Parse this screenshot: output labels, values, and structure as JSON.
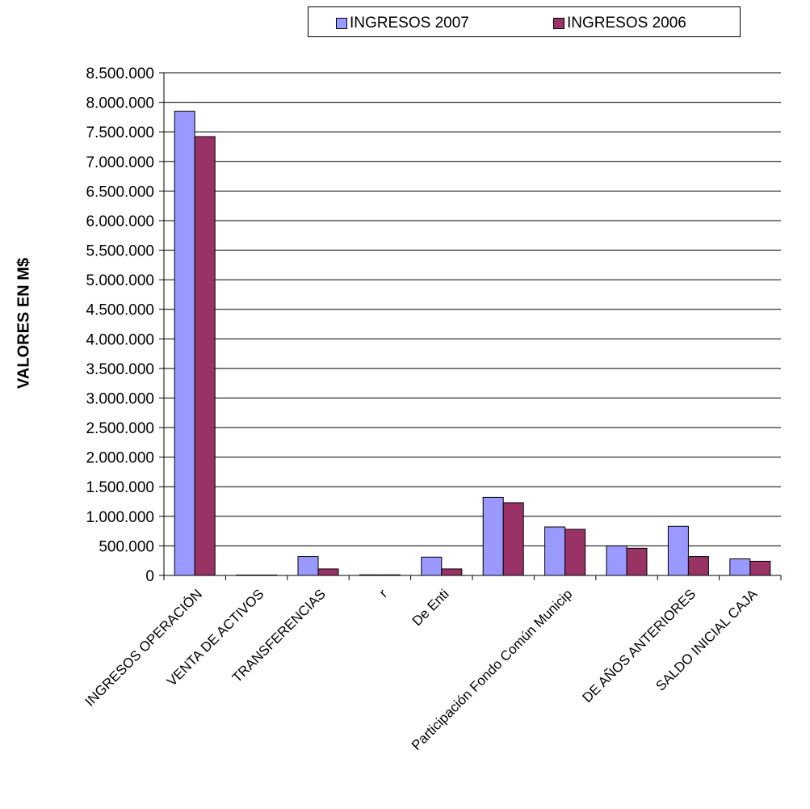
{
  "chart_data": {
    "type": "bar",
    "ylabel": "VALORES EN M$",
    "ylim": [
      0,
      8500000
    ],
    "ytick_step": 500000,
    "yticks": [
      "0",
      "500.000",
      "1.000.000",
      "1.500.000",
      "2.000.000",
      "2.500.000",
      "3.000.000",
      "3.500.000",
      "4.000.000",
      "4.500.000",
      "5.000.000",
      "5.500.000",
      "6.000.000",
      "6.500.000",
      "7.000.000",
      "7.500.000",
      "8.000.000",
      "8.500.000"
    ],
    "grid": "horizontal",
    "legend_position": "top",
    "categories": [
      "INGRESOS OPERACIÓN",
      "VENTA DE ACTIVOS",
      "TRANSFERENCIAS",
      "r",
      "De Enti",
      "",
      "Participación Fondo Común Municip",
      "",
      "DE AÑOS ANTERIORES",
      "SALDO INICIAL CAJA"
    ],
    "series": [
      {
        "name": "INGRESOS 2007",
        "color": "#9999ff",
        "values": [
          7850000,
          0,
          320000,
          10000,
          310000,
          1320000,
          820000,
          500000,
          830000,
          280000
        ]
      },
      {
        "name": "INGRESOS 2006",
        "color": "#993366",
        "values": [
          7420000,
          0,
          110000,
          10000,
          110000,
          1230000,
          780000,
          460000,
          320000,
          240000
        ]
      }
    ]
  }
}
